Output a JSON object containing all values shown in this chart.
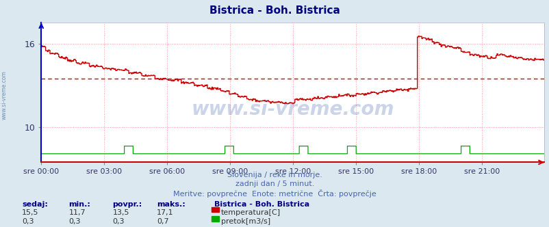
{
  "title": "Bistrica - Boh. Bistrica",
  "title_color": "#000080",
  "bg_color": "#dce8f0",
  "plot_bg_color": "#ffffff",
  "grid_color": "#ff9999",
  "grid_style": ":",
  "xlabel_ticks": [
    "sre 00:00",
    "sre 03:00",
    "sre 06:00",
    "sre 09:00",
    "sre 12:00",
    "sre 15:00",
    "sre 18:00",
    "sre 21:00"
  ],
  "tick_positions": [
    0,
    72,
    144,
    216,
    288,
    360,
    432,
    504
  ],
  "n_points": 576,
  "temp_color": "#cc0000",
  "flow_color": "#00aa00",
  "avg_line_color": "#cc0000",
  "avg_line_style": "--",
  "temp_avg": 13.5,
  "temp_min": 11.7,
  "temp_max": 17.1,
  "temp_current": 15.5,
  "flow_avg": 0.3,
  "flow_min": 0.3,
  "flow_max": 0.7,
  "flow_current": 0.3,
  "ymin": 7.5,
  "ymax": 17.5,
  "yticks": [
    10,
    16
  ],
  "watermark": "www.si-vreme.com",
  "watermark_color": "#3355aa",
  "watermark_alpha": 0.25,
  "left_label": "www.si-vreme.com",
  "footer_line1": "Slovenija / reke in morje.",
  "footer_line2": "zadnji dan / 5 minut.",
  "footer_line3": "Meritve: povprečne  Enote: metrične  Črta: povprečje",
  "footer_color": "#4466aa",
  "legend_title": "Bistrica - Boh. Bistrica",
  "legend_label1": "temperatura[C]",
  "legend_label2": "pretok[m3/s]",
  "table_headers": [
    "sedaj:",
    "min.:",
    "povpr.:",
    "maks.:"
  ],
  "table_row1": [
    "15,5",
    "11,7",
    "13,5",
    "17,1"
  ],
  "table_row2": [
    "0,3",
    "0,3",
    "0,3",
    "0,7"
  ],
  "left_spine_color": "#0000cc",
  "bottom_spine_color": "#cc0000"
}
